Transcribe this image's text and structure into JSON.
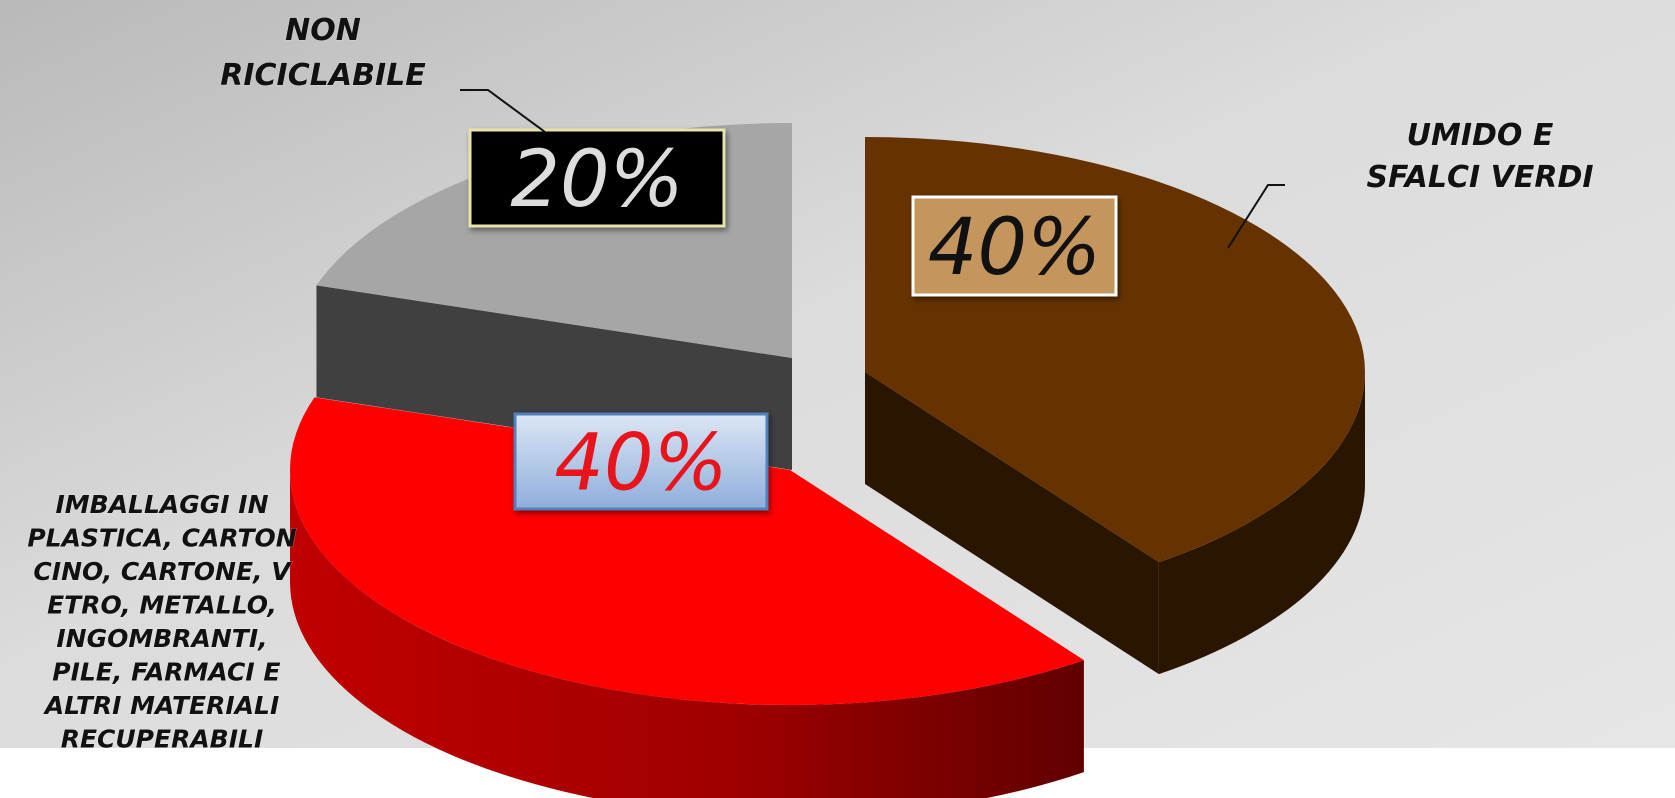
{
  "chart_data": {
    "type": "pie",
    "title": "",
    "legend": "none",
    "slices": [
      {
        "label_lines": [
          "UMIDO E",
          "SFALCI VERDI"
        ],
        "value": 40,
        "display": "40%",
        "color": "#663300",
        "side_color": "#2a1500",
        "label_box_fill": "#c4955c",
        "label_box_stroke": "#ffffff",
        "label_text_color": "#111111"
      },
      {
        "label_lines": [
          "IMBALLAGGI IN",
          "PLASTICA, CARTON",
          "CINO, CARTONE,  V",
          "ETRO, METALLO,",
          "INGOMBRANTI,",
          " PILE, FARMACI E",
          "ALTRI MATERIALI",
          "RECUPERABILI"
        ],
        "value": 40,
        "display": "40%",
        "color": "#ff0000",
        "side_color": "#8a0000",
        "label_box_fill": "#a9c2e4",
        "label_box_stroke": "#4f81bd",
        "label_text_color": "#e8141c"
      },
      {
        "label_lines": [
          "NON",
          "RICICLABILE"
        ],
        "value": 20,
        "display": "20%",
        "color": "#a6a6a6",
        "side_color": "#404040",
        "label_box_fill": "#000000",
        "label_box_stroke": "#e8e4a8",
        "label_text_color": "#dddddd"
      }
    ]
  }
}
